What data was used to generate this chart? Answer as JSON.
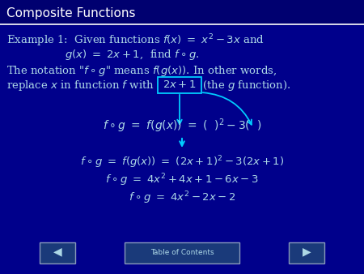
{
  "title": "Composite Functions",
  "bg_color": "#00008B",
  "title_color": "#FFFFFF",
  "text_color": "#ADD8E6",
  "box_color": "#00CCFF",
  "title_fontsize": 11,
  "body_fontsize": 9.5,
  "math_fontsize": 10,
  "toc_text": "Table of Contents"
}
